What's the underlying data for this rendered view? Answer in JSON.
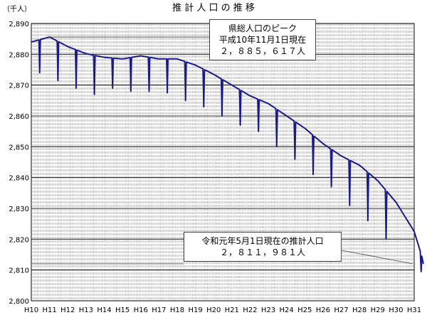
{
  "chart_data": {
    "type": "line",
    "title": "推 計 人 口 の 推 移",
    "unit_label": "（千人）",
    "y_ticks": [
      "2,800",
      "2,810",
      "2,820",
      "2,830",
      "2,840",
      "2,850",
      "2,860",
      "2,870",
      "2,880",
      "2,890"
    ],
    "x_ticks": [
      "H10",
      "H11",
      "H12",
      "H13",
      "H14",
      "H15",
      "H16",
      "H17",
      "H18",
      "H19",
      "H20",
      "H21",
      "H22",
      "H23",
      "H24",
      "H25",
      "H26",
      "H27",
      "H28",
      "H29",
      "H30",
      "H31"
    ],
    "ylim": [
      2800,
      2890
    ],
    "grid": true,
    "series": [
      {
        "color": "#1a1a8c",
        "annual_points": [
          {
            "year": "H10",
            "value": 2884
          },
          {
            "year": "H11",
            "value": 2885.6
          },
          {
            "year": "H12",
            "value": 2882.5
          },
          {
            "year": "H13",
            "value": 2880.2
          },
          {
            "year": "H14",
            "value": 2879
          },
          {
            "year": "H15",
            "value": 2878.5
          },
          {
            "year": "H16",
            "value": 2879.5
          },
          {
            "year": "H17",
            "value": 2878.5
          },
          {
            "year": "H18",
            "value": 2878.5
          },
          {
            "year": "H19",
            "value": 2876.5
          },
          {
            "year": "H20",
            "value": 2873.5
          },
          {
            "year": "H21",
            "value": 2870
          },
          {
            "year": "H22",
            "value": 2866.5
          },
          {
            "year": "H23",
            "value": 2864
          },
          {
            "year": "H24",
            "value": 2860
          },
          {
            "year": "H25",
            "value": 2856
          },
          {
            "year": "H26",
            "value": 2851
          },
          {
            "year": "H27",
            "value": 2847
          },
          {
            "year": "H28",
            "value": 2844
          },
          {
            "year": "H29",
            "value": 2839
          },
          {
            "year": "H30",
            "value": 2832
          },
          {
            "year": "H31",
            "value": 2822.5
          }
        ],
        "spring_dips": [
          2874,
          2871.5,
          2869,
          2867,
          2869,
          2868,
          2868,
          2867.5,
          2865,
          2863,
          2860,
          2857,
          2855,
          2850,
          2846,
          2841,
          2837,
          2831,
          2826,
          2820
        ],
        "end_value": 2809.5
      }
    ],
    "annotations": [
      {
        "lines": [
          "県総人口のピーク",
          "平成10年11月1日現在",
          "２，８８５，６１７人"
        ],
        "target_value": 2885.6
      },
      {
        "lines": [
          "令和元年5月1日現在の推計人口",
          "２，８１１，９８１人"
        ],
        "target_value": 2812
      }
    ]
  }
}
